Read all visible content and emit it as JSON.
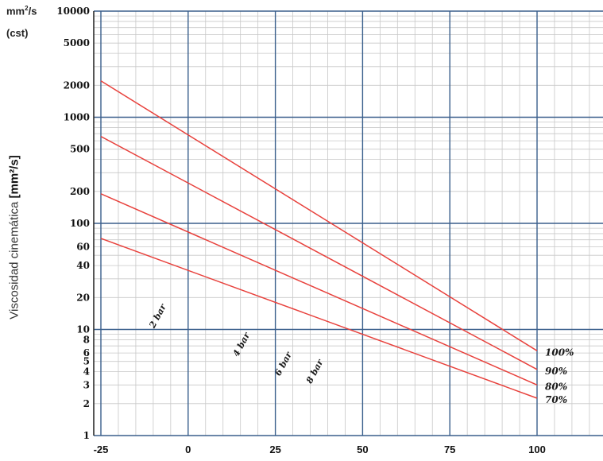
{
  "chart_data": {
    "type": "line",
    "xlabel": "",
    "ylabel_plain": "Viscosidad cinemática ",
    "ylabel_bold": "[mm²/s]",
    "unit_label": "mm²/s",
    "unit_label_base": "mm",
    "unit_label_sup": "2",
    "unit_label_tail": "/s",
    "unit_sublabel": "(cst)",
    "xlim": [
      -25,
      120
    ],
    "ylim": [
      1,
      10000
    ],
    "yscale": "log",
    "x_ticks": [
      {
        "value": -25,
        "label": "-25"
      },
      {
        "value": 0,
        "label": "0"
      },
      {
        "value": 25,
        "label": "25"
      },
      {
        "value": 50,
        "label": "50"
      },
      {
        "value": 75,
        "label": "75"
      },
      {
        "value": 100,
        "label": "100"
      }
    ],
    "y_ticks": [
      {
        "value": 10000,
        "label": "10000"
      },
      {
        "value": 5000,
        "label": "5000"
      },
      {
        "value": 2000,
        "label": "2000"
      },
      {
        "value": 1000,
        "label": "1000"
      },
      {
        "value": 500,
        "label": "500"
      },
      {
        "value": 200,
        "label": "200"
      },
      {
        "value": 100,
        "label": "100"
      },
      {
        "value": 60,
        "label": "60"
      },
      {
        "value": 40,
        "label": "40"
      },
      {
        "value": 20,
        "label": "20"
      },
      {
        "value": 10,
        "label": "10"
      },
      {
        "value": 8,
        "label": "8"
      },
      {
        "value": 6,
        "label": "6"
      },
      {
        "value": 5,
        "label": "5"
      },
      {
        "value": 4,
        "label": "4"
      },
      {
        "value": 3,
        "label": "3"
      },
      {
        "value": 2,
        "label": "2"
      },
      {
        "value": 1,
        "label": "1"
      }
    ],
    "series": [
      {
        "name": "100%",
        "color": "#e8413c",
        "x": [
          -25,
          100
        ],
        "y": [
          2200,
          6.3
        ]
      },
      {
        "name": "90%",
        "color": "#e8413c",
        "x": [
          -25,
          100
        ],
        "y": [
          660,
          4.2
        ]
      },
      {
        "name": "80%",
        "color": "#e8413c",
        "x": [
          -25,
          100
        ],
        "y": [
          190,
          3.0
        ]
      },
      {
        "name": "70%",
        "color": "#e8413c",
        "x": [
          -25,
          100
        ],
        "y": [
          72,
          2.25
        ]
      }
    ],
    "annotations": [
      {
        "text": "2 bar",
        "x": -8,
        "y": 13
      },
      {
        "text": "4 bar",
        "x": 16,
        "y": 7
      },
      {
        "text": "6 bar",
        "x": 28,
        "y": 4.6
      },
      {
        "text": "8 bar",
        "x": 37,
        "y": 3.9
      }
    ],
    "grid": true,
    "major_grid_color": "#3a5f8c",
    "minor_grid_color": "#c8c8c8",
    "legend": "none"
  }
}
